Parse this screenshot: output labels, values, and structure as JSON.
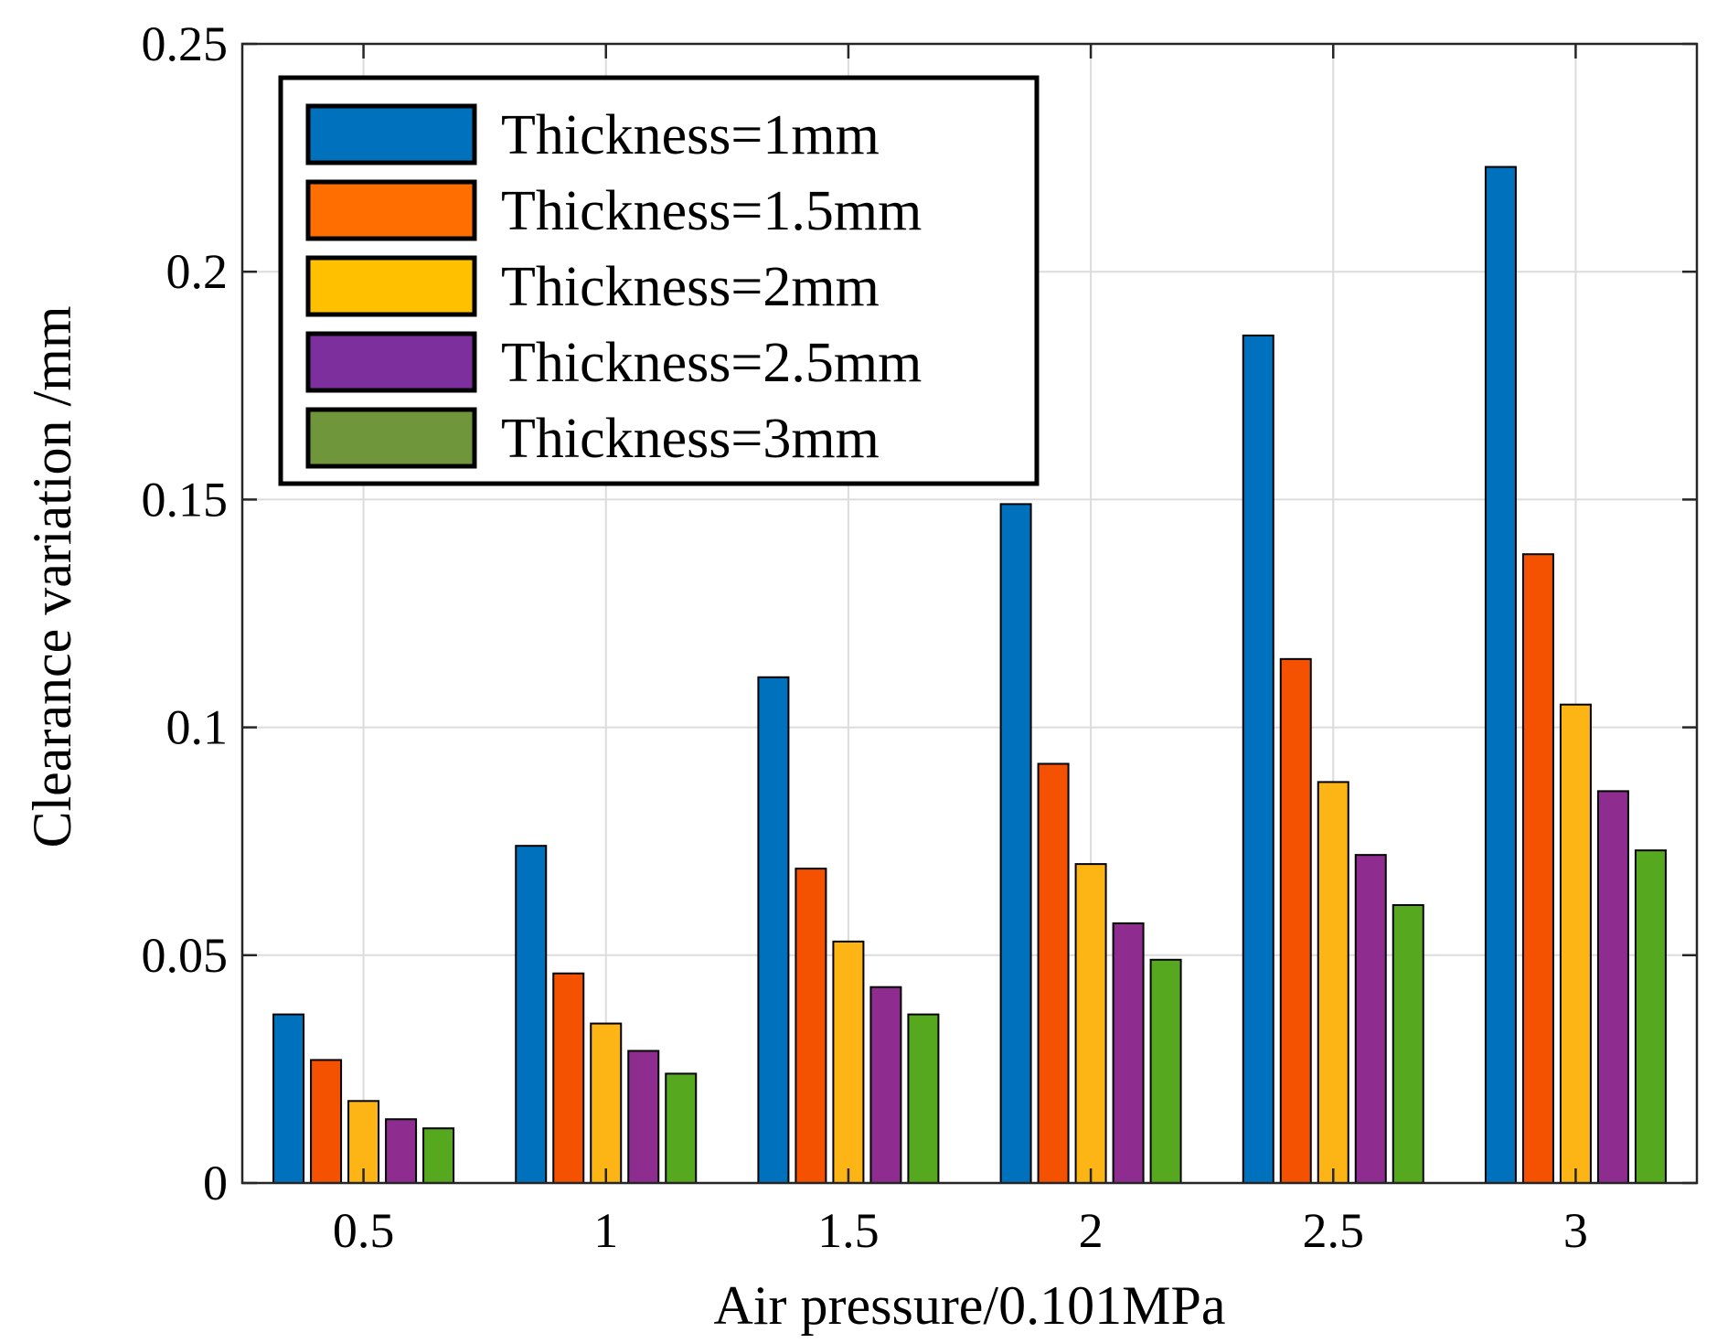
{
  "chart_data": {
    "type": "bar",
    "title": "",
    "xlabel": "Air pressure/0.101MPa",
    "ylabel": "Clearance variation /mm",
    "categories": [
      "0.5",
      "1",
      "1.5",
      "2",
      "2.5",
      "3"
    ],
    "ylim": [
      0,
      0.25
    ],
    "yticks": [
      0,
      0.05,
      0.1,
      0.15,
      0.2,
      0.25
    ],
    "ytick_labels": [
      "0",
      "0.05",
      "0.1",
      "0.15",
      "0.2",
      "0.25"
    ],
    "grid": true,
    "legend_position": "top-left",
    "series": [
      {
        "name": "Thickness=1mm",
        "color": "#0072BD",
        "values": [
          0.037,
          0.074,
          0.111,
          0.149,
          0.186,
          0.223
        ]
      },
      {
        "name": "Thickness=1.5mm",
        "color": "#F45100",
        "values": [
          0.027,
          0.046,
          0.069,
          0.092,
          0.115,
          0.138
        ]
      },
      {
        "name": "Thickness=2mm",
        "color": "#FDB515",
        "values": [
          0.018,
          0.035,
          0.053,
          0.07,
          0.088,
          0.105
        ]
      },
      {
        "name": "Thickness=2.5mm",
        "color": "#8E2C90",
        "values": [
          0.014,
          0.029,
          0.043,
          0.057,
          0.072,
          0.086
        ]
      },
      {
        "name": "Thickness=3mm",
        "color": "#56A81E",
        "values": [
          0.012,
          0.024,
          0.037,
          0.049,
          0.061,
          0.073
        ]
      }
    ],
    "legend_swatch_colors": [
      "#0072BD",
      "#FF6E00",
      "#FFC000",
      "#7E2F9E",
      "#6F963A"
    ]
  }
}
